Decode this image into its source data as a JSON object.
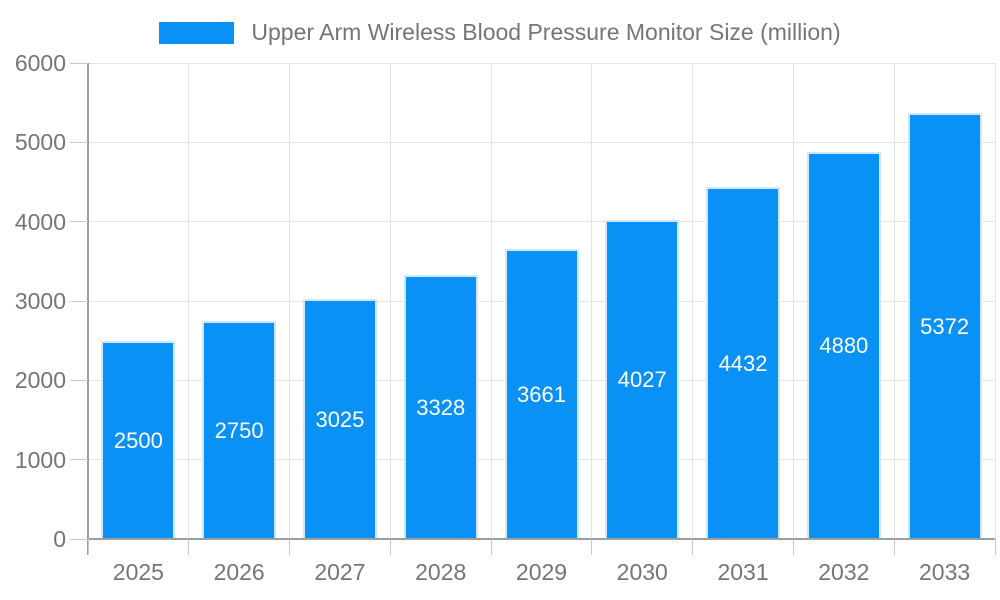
{
  "page": {
    "background": "#ffffff"
  },
  "legend": {
    "label": "Upper Arm Wireless Blood Pressure Monitor Size (million)",
    "swatch_color": "#0991f5",
    "position": "top-center"
  },
  "chart_data": {
    "type": "bar",
    "title": "Upper Arm Wireless Blood Pressure Monitor Size (million)",
    "series_name": "Upper Arm Wireless Blood Pressure Monitor Size (million)",
    "categories": [
      "2025",
      "2026",
      "2027",
      "2028",
      "2029",
      "2030",
      "2031",
      "2032",
      "2033"
    ],
    "values": [
      2500,
      2750,
      3025,
      3328,
      3661,
      4027,
      4432,
      4880,
      5372
    ],
    "xlabel": "",
    "ylabel": "",
    "ylim": [
      0,
      6000
    ],
    "ytick_interval": 1000,
    "yticks": [
      "0",
      "1000",
      "2000",
      "3000",
      "4000",
      "5000",
      "6000"
    ],
    "grid": true,
    "bar_labels_shown": true,
    "legend_position": "top-center"
  },
  "colors": {
    "bar": "#0991f5",
    "bar_border": "#cfe7fc",
    "bar_label": "#ffffff",
    "grid": "#e4e4e4",
    "axis": "#9e9e9e",
    "tick": "#c9c9c9",
    "text": "#757575",
    "background": "#ffffff"
  }
}
